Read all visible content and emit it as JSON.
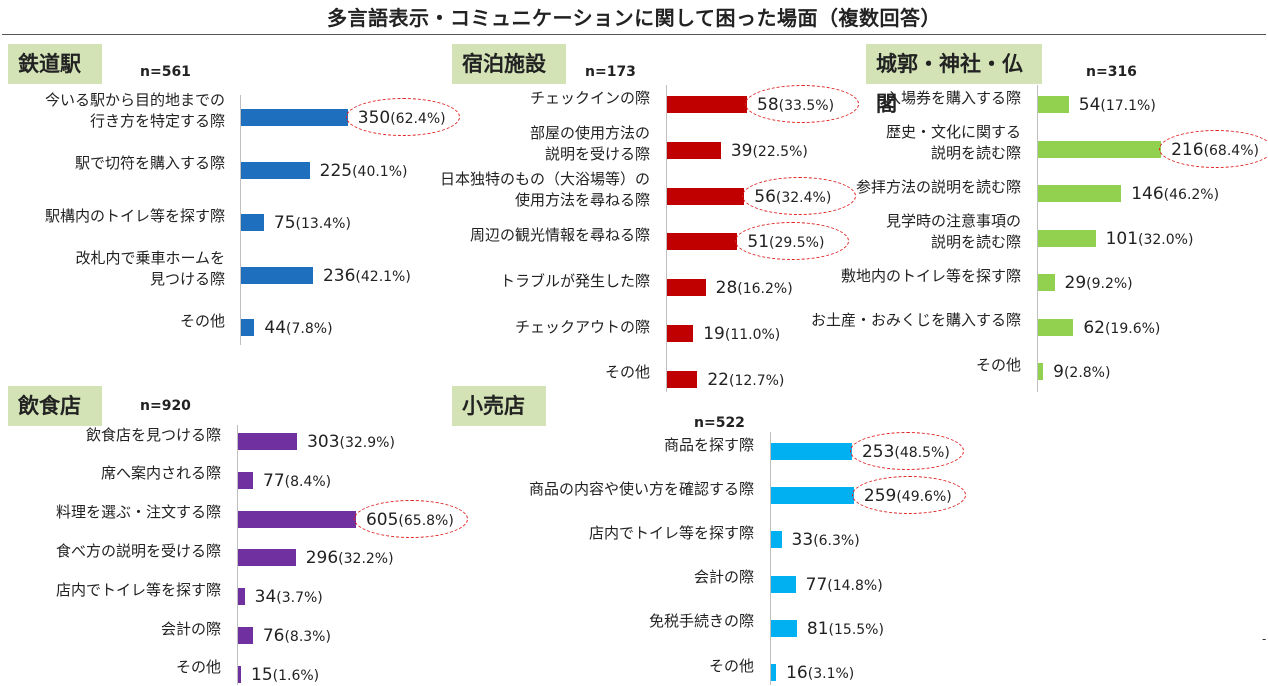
{
  "title": "多言語表示・コミュニケーションに関して困った場面（複数回答）",
  "colors": {
    "railway": "#1f6fbf",
    "lodging": "#c00000",
    "shrine": "#92d050",
    "restaurant": "#7030a0",
    "retail": "#00b0f0",
    "badge_bg": "#d3e3b6",
    "highlight_ring": "#e02020"
  },
  "chart_data": [
    {
      "id": "railway",
      "type": "bar",
      "orientation": "horizontal",
      "title": "鉄道駅",
      "n_label": "n=561",
      "categories": [
        "今いる駅から目的地までの\n行き方を特定する際",
        "駅で切符を購入する際",
        "駅構内のトイレ等を探す際",
        "改札内で乗車ホームを\n見つける際",
        "その他"
      ],
      "values": [
        350,
        225,
        75,
        236,
        44
      ],
      "percents": [
        "62.4%",
        "40.1%",
        "13.4%",
        "42.1%",
        "7.8%"
      ],
      "highlighted": [
        0
      ]
    },
    {
      "id": "lodging",
      "type": "bar",
      "orientation": "horizontal",
      "title": "宿泊施設",
      "n_label": "n=173",
      "categories": [
        "チェックインの際",
        "部屋の使用方法の\n説明を受ける際",
        "日本独特のもの（大浴場等）の\n使用方法を尋ねる際",
        "周辺の観光情報を尋ねる際",
        "トラブルが発生した際",
        "チェックアウトの際",
        "その他"
      ],
      "values": [
        58,
        39,
        56,
        51,
        28,
        19,
        22
      ],
      "percents": [
        "33.5%",
        "22.5%",
        "32.4%",
        "29.5%",
        "16.2%",
        "11.0%",
        "12.7%"
      ],
      "highlighted": [
        0,
        2,
        3
      ]
    },
    {
      "id": "shrine",
      "type": "bar",
      "orientation": "horizontal",
      "title": "城郭・神社・仏閣",
      "n_label": "n=316",
      "categories": [
        "入場券を購入する際",
        "歴史・文化に関する\n説明を読む際",
        "参拝方法の説明を読む際",
        "見学時の注意事項の\n説明を読む際",
        "敷地内のトイレ等を探す際",
        "お土産・おみくじを購入する際",
        "その他"
      ],
      "values": [
        54,
        216,
        146,
        101,
        29,
        62,
        9
      ],
      "percents": [
        "17.1%",
        "68.4%",
        "46.2%",
        "32.0%",
        "9.2%",
        "19.6%",
        "2.8%"
      ],
      "highlighted": [
        1
      ]
    },
    {
      "id": "restaurant",
      "type": "bar",
      "orientation": "horizontal",
      "title": "飲食店",
      "n_label": "n=920",
      "categories": [
        "飲食店を見つける際",
        "席へ案内される際",
        "料理を選ぶ・注文する際",
        "食べ方の説明を受ける際",
        "店内でトイレ等を探す際",
        "会計の際",
        "その他"
      ],
      "values": [
        303,
        77,
        605,
        296,
        34,
        76,
        15
      ],
      "percents": [
        "32.9%",
        "8.4%",
        "65.8%",
        "32.2%",
        "3.7%",
        "8.3%",
        "1.6%"
      ],
      "highlighted": [
        2
      ]
    },
    {
      "id": "retail",
      "type": "bar",
      "orientation": "horizontal",
      "title": "小売店",
      "n_label": "n=522",
      "categories": [
        "商品を探す際",
        "商品の内容や使い方を確認する際",
        "店内でトイレ等を探す際",
        "会計の際",
        "免税手続きの際",
        "その他"
      ],
      "values": [
        253,
        259,
        33,
        77,
        81,
        16
      ],
      "percents": [
        "48.5%",
        "49.6%",
        "6.3%",
        "14.8%",
        "15.5%",
        "3.1%"
      ],
      "highlighted": [
        0,
        1
      ]
    }
  ]
}
